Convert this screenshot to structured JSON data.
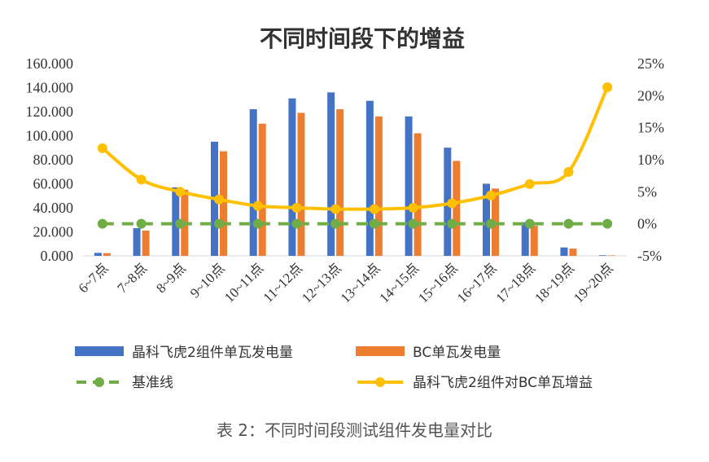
{
  "chart_data": {
    "type": "bar",
    "title": "不同时间段下的增益",
    "categories": [
      "6~7点",
      "7~8点",
      "8~9点",
      "9~10点",
      "10~11点",
      "11~12点",
      "12~13点",
      "13~14点",
      "14~15点",
      "15~16点",
      "16~17点",
      "17~18点",
      "18~19点",
      "19~20点"
    ],
    "y_left": {
      "min": 0,
      "max": 160,
      "step": 20,
      "tick_labels": [
        "0.000",
        "20.000",
        "40.000",
        "60.000",
        "80.000",
        "100.000",
        "120.000",
        "140.000",
        "160.000"
      ]
    },
    "y_right": {
      "min": -5,
      "max": 25,
      "step": 5,
      "tick_labels": [
        "-5%",
        "0%",
        "5%",
        "10%",
        "15%",
        "20%",
        "25%"
      ]
    },
    "series": [
      {
        "name": "晶科飞虎2组件单瓦发电量",
        "type": "bar",
        "axis": "left",
        "color": "#4472C4",
        "values": [
          2.5,
          23,
          57,
          95,
          122,
          131,
          136,
          129,
          116,
          90,
          60,
          28,
          7,
          0.5
        ]
      },
      {
        "name": "BC单瓦发电量",
        "type": "bar",
        "axis": "left",
        "color": "#ED7D31",
        "values": [
          2.3,
          21,
          55,
          87,
          110,
          119,
          122,
          116,
          102,
          79,
          56,
          25,
          6,
          0.4
        ]
      },
      {
        "name": "基准线",
        "type": "line",
        "axis": "right",
        "color": "#70AD47",
        "dashed": true,
        "values": [
          0,
          0,
          0,
          0,
          0,
          0,
          0,
          0,
          0,
          0,
          0,
          0,
          0,
          0
        ]
      },
      {
        "name": "晶科飞虎2组件对BC单瓦增益",
        "type": "line",
        "axis": "right",
        "color": "#FFC000",
        "values": [
          11.8,
          6.9,
          5.0,
          3.8,
          2.8,
          2.5,
          2.3,
          2.3,
          2.5,
          3.2,
          4.4,
          6.2,
          8.1,
          21.3
        ]
      }
    ],
    "legend_position": "bottom",
    "grid": false
  },
  "caption": "表 2：不同时间段测试组件发电量对比"
}
